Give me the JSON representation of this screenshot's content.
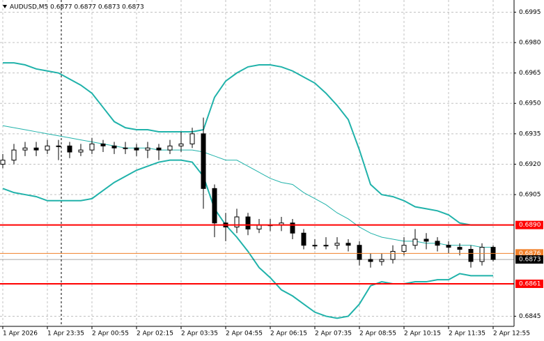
{
  "chart_data": {
    "type": "candlestick",
    "title": "AUDUSD,M5  0.6877 0.6877 0.6873 0.6873",
    "x": [
      0,
      20,
      40,
      60,
      80,
      100,
      120,
      140,
      160,
      180,
      200,
      220,
      240,
      260,
      280,
      300,
      320,
      340,
      360,
      380,
      400,
      420,
      440,
      460,
      480,
      500,
      520,
      540,
      560,
      580,
      600,
      620,
      640,
      660,
      680,
      700,
      720,
      740,
      760,
      780,
      800,
      820,
      840,
      860,
      880
    ],
    "xlim": [
      -5,
      917.5
    ],
    "xticks": [
      {
        "value": 0,
        "label": "1 Apr 2026"
      },
      {
        "value": 80,
        "label": "1 Apr 23:35"
      },
      {
        "value": 160,
        "label": "2 Apr 00:55"
      },
      {
        "value": 240,
        "label": "2 Apr 02:15"
      },
      {
        "value": 320,
        "label": "2 Apr 03:35"
      },
      {
        "value": 400,
        "label": "2 Apr 04:55"
      },
      {
        "value": 480,
        "label": "2 Apr 06:15"
      },
      {
        "value": 560,
        "label": "2 Apr 07:35"
      },
      {
        "value": 640,
        "label": "2 Apr 08:55"
      },
      {
        "value": 720,
        "label": "2 Apr 10:15"
      },
      {
        "value": 800,
        "label": "2 Apr 11:35"
      },
      {
        "value": 880,
        "label": "2 Apr 12:55"
      }
    ],
    "ylim": [
      0.684,
      0.7001
    ],
    "yticks": [
      0.6995,
      {
        "value": 0.698,
        "label": "0.6980"
      },
      0.6965,
      {
        "value": 0.695,
        "label": "0.6950"
      },
      0.6935,
      {
        "value": 0.692,
        "label": "0.6920"
      },
      0.6905,
      0.6845
    ],
    "grid": true,
    "candle_color": "#000000",
    "open": [
      0.692,
      0.6922,
      0.6927,
      0.6928,
      0.6927,
      0.6929,
      0.6929,
      0.6926,
      0.6927,
      0.693,
      0.6929,
      0.6928,
      0.6928,
      0.6927,
      0.6928,
      0.6927,
      0.6929,
      0.693,
      0.6935,
      0.6908,
      0.6891,
      0.6889,
      0.6894,
      0.6888,
      0.689,
      0.689,
      0.6891,
      0.6886,
      0.688,
      0.688,
      0.688,
      0.6881,
      0.688,
      0.6873,
      0.6872,
      0.6873,
      0.6877,
      0.688,
      0.6883,
      0.6882,
      0.688,
      0.6879,
      0.6878,
      0.6872,
      0.6879
    ],
    "high": [
      0.6925,
      0.693,
      0.6931,
      0.6931,
      0.6932,
      0.6932,
      0.6931,
      0.693,
      0.6933,
      0.6932,
      0.6931,
      0.6931,
      0.693,
      0.6931,
      0.693,
      0.6932,
      0.6936,
      0.6938,
      0.6943,
      0.691,
      0.6896,
      0.6898,
      0.6896,
      0.6893,
      0.6893,
      0.6894,
      0.6893,
      0.6888,
      0.6883,
      0.6884,
      0.6884,
      0.6883,
      0.6882,
      0.6876,
      0.6876,
      0.688,
      0.6884,
      0.6888,
      0.6886,
      0.6884,
      0.6882,
      0.6881,
      0.688,
      0.6881,
      0.688
    ],
    "low": [
      0.6918,
      0.692,
      0.6924,
      0.6924,
      0.6925,
      0.6922,
      0.6923,
      0.6924,
      0.6925,
      0.6926,
      0.6925,
      0.6925,
      0.6924,
      0.6923,
      0.6922,
      0.6925,
      0.6926,
      0.6928,
      0.6898,
      0.6884,
      0.6882,
      0.6886,
      0.6885,
      0.6886,
      0.6887,
      0.6887,
      0.6883,
      0.6878,
      0.6878,
      0.6878,
      0.6878,
      0.6877,
      0.687,
      0.6869,
      0.687,
      0.6871,
      0.6875,
      0.6878,
      0.6878,
      0.6877,
      0.6876,
      0.6875,
      0.6869,
      0.687,
      0.6872
    ],
    "close": [
      0.6922,
      0.6927,
      0.6928,
      0.6927,
      0.6929,
      0.6929,
      0.6926,
      0.6927,
      0.693,
      0.6929,
      0.6928,
      0.6928,
      0.6927,
      0.6928,
      0.6927,
      0.6929,
      0.693,
      0.6935,
      0.6908,
      0.6891,
      0.6889,
      0.6894,
      0.6888,
      0.689,
      0.689,
      0.6891,
      0.6886,
      0.688,
      0.688,
      0.688,
      0.6881,
      0.688,
      0.6873,
      0.6872,
      0.6873,
      0.6877,
      0.688,
      0.6883,
      0.6882,
      0.688,
      0.6879,
      0.6878,
      0.6872,
      0.6879,
      0.6873
    ],
    "series": [
      {
        "color": "#20b2aa",
        "width": 2,
        "values": [
          0.697,
          0.697,
          0.6969,
          0.6967,
          0.6966,
          0.6965,
          0.6962,
          0.6959,
          0.6955,
          0.6948,
          0.6941,
          0.6938,
          0.6937,
          0.6937,
          0.6936,
          0.6936,
          0.6936,
          0.6936,
          0.6937,
          0.6953,
          0.6961,
          0.6965,
          0.6968,
          0.6969,
          0.6969,
          0.6968,
          0.6966,
          0.6963,
          0.696,
          0.6955,
          0.6949,
          0.6942,
          0.6927,
          0.691,
          0.6905,
          0.6904,
          0.6902,
          0.6899,
          0.6898,
          0.6897,
          0.6895,
          0.6891,
          0.689,
          0.689,
          0.689
        ]
      },
      {
        "color": "#20b2aa",
        "width": 1,
        "values": [
          0.6939,
          0.6938,
          0.6937,
          0.6936,
          0.6935,
          0.6934,
          0.6933,
          0.6932,
          0.6931,
          0.693,
          0.6929,
          0.6928,
          0.6928,
          0.6928,
          0.6927,
          0.6927,
          0.6927,
          0.6927,
          0.6926,
          0.6924,
          0.6922,
          0.6922,
          0.6919,
          0.6916,
          0.6913,
          0.6911,
          0.691,
          0.6906,
          0.6903,
          0.69,
          0.6896,
          0.6893,
          0.6889,
          0.6886,
          0.6884,
          0.6883,
          0.6882,
          0.6882,
          0.6881,
          0.6881,
          0.688,
          0.688,
          0.688,
          0.6879,
          0.6879
        ]
      },
      {
        "color": "#20b2aa",
        "width": 2,
        "values": [
          0.6908,
          0.6906,
          0.6905,
          0.6904,
          0.6902,
          0.6902,
          0.6902,
          0.6902,
          0.6903,
          0.6907,
          0.6911,
          0.6914,
          0.6917,
          0.6919,
          0.6921,
          0.6922,
          0.6922,
          0.6921,
          0.6914,
          0.6898,
          0.689,
          0.6884,
          0.6877,
          0.6869,
          0.6864,
          0.6858,
          0.6855,
          0.6851,
          0.6847,
          0.6845,
          0.6844,
          0.6845,
          0.6851,
          0.686,
          0.6862,
          0.6861,
          0.6861,
          0.6862,
          0.6862,
          0.6863,
          0.6863,
          0.6866,
          0.6865,
          0.6865,
          0.6865
        ]
      }
    ],
    "levels": [
      {
        "value": 0.689,
        "label": "0.6890",
        "color": "#ff0000"
      },
      {
        "value": 0.6861,
        "label": "0.6861",
        "color": "#ff0000"
      },
      {
        "value": 0.6876,
        "label": "0.6876",
        "color": "#f0802a"
      },
      {
        "value": 0.6873,
        "label": "0.6873",
        "color": "#000000"
      }
    ]
  }
}
